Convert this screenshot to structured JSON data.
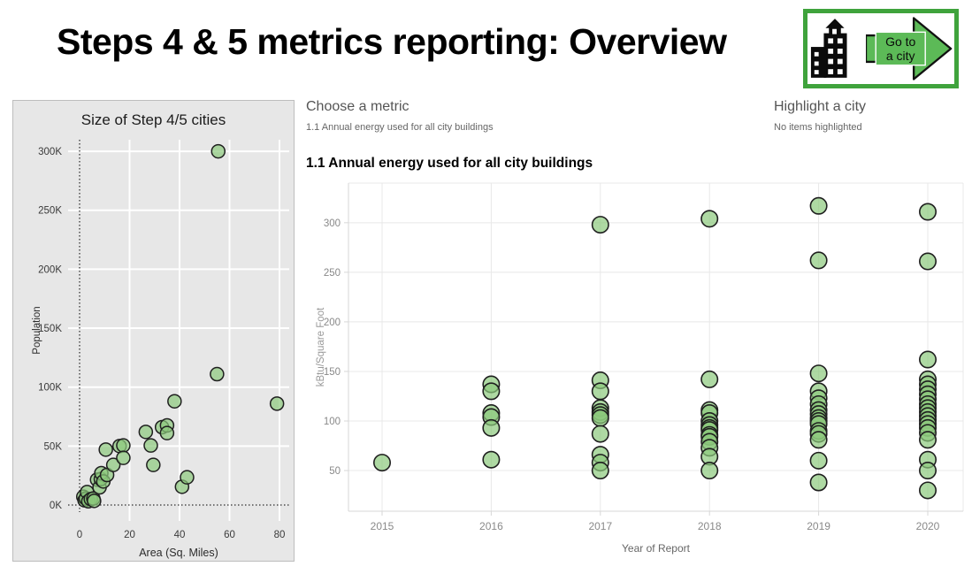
{
  "header": {
    "title": "Steps 4 & 5 metrics reporting: Overview"
  },
  "go_to_city": {
    "label_line1": "Go to",
    "label_line2": "a city",
    "border_color": "#3fa33c",
    "arrow_color": "#5cba57"
  },
  "controls": {
    "choose_metric": {
      "title": "Choose a metric",
      "value": "1.1 Annual energy used for all city buildings"
    },
    "highlight_city": {
      "title": "Highlight a city",
      "status": "No items highlighted"
    }
  },
  "colors": {
    "point_fill": "#8cc97c",
    "point_stroke": "#1f1f1f",
    "left_card_bg": "#e7e7e7",
    "main_grid": "#e8e8e8",
    "main_axis": "#d7d7d7",
    "main_tick_text": "#898989"
  },
  "chart_data": [
    {
      "type": "scatter",
      "title": "Size of Step 4/5 cities",
      "xlabel": "Area  (Sq. Miles)",
      "ylabel": "Population",
      "xticks": [
        0,
        20,
        40,
        60,
        80
      ],
      "yticks": [
        0,
        50,
        100,
        150,
        200,
        250,
        300
      ],
      "ytick_suffix": "K",
      "xlim": [
        -4.6,
        83.9
      ],
      "ylim": [
        -13.5,
        309.8
      ],
      "grid": "on",
      "zero_lines": "dotted",
      "points_note": "x = area in sq. miles, y = population in thousands",
      "points": [
        [
          1.5,
          7
        ],
        [
          2,
          4
        ],
        [
          2.5,
          5.5
        ],
        [
          3,
          11
        ],
        [
          3.5,
          3.2
        ],
        [
          4.5,
          5
        ],
        [
          5.5,
          5.5
        ],
        [
          5.8,
          3.5
        ],
        [
          7,
          21.5
        ],
        [
          8,
          15
        ],
        [
          8.5,
          22
        ],
        [
          8.7,
          27
        ],
        [
          9.5,
          20
        ],
        [
          11,
          25.5
        ],
        [
          10.5,
          47
        ],
        [
          13.5,
          34
        ],
        [
          16,
          50
        ],
        [
          17.5,
          50.5
        ],
        [
          17.5,
          40
        ],
        [
          26.5,
          62
        ],
        [
          28.5,
          50.5
        ],
        [
          29.5,
          34
        ],
        [
          33,
          66
        ],
        [
          35,
          67.5
        ],
        [
          35,
          61
        ],
        [
          38,
          88
        ],
        [
          41,
          15.5
        ],
        [
          43,
          23.5
        ],
        [
          55,
          111
        ],
        [
          55.5,
          300
        ],
        [
          79,
          86
        ]
      ]
    },
    {
      "type": "scatter",
      "title": "1.1 Annual energy used for all city buildings",
      "xlabel": "Year of Report",
      "ylabel": "kBtu/Square Foot",
      "categories": [
        "2015",
        "2016",
        "2017",
        "2018",
        "2019",
        "2020"
      ],
      "yticks": [
        50,
        100,
        150,
        200,
        250,
        300
      ],
      "ylim": [
        9,
        340
      ],
      "grid": "on",
      "points_note": "pairs of [year, kBtu per square foot]",
      "points": [
        [
          2015,
          58
        ],
        [
          2016,
          137
        ],
        [
          2016,
          130
        ],
        [
          2016,
          108
        ],
        [
          2016,
          104
        ],
        [
          2016,
          93
        ],
        [
          2016,
          61
        ],
        [
          2017,
          298
        ],
        [
          2017,
          141
        ],
        [
          2017,
          130
        ],
        [
          2017,
          113
        ],
        [
          2017,
          109
        ],
        [
          2017,
          106
        ],
        [
          2017,
          103
        ],
        [
          2017,
          87
        ],
        [
          2017,
          66
        ],
        [
          2017,
          58
        ],
        [
          2017,
          50
        ],
        [
          2018,
          304
        ],
        [
          2018,
          142
        ],
        [
          2018,
          111
        ],
        [
          2018,
          108
        ],
        [
          2018,
          100
        ],
        [
          2018,
          96
        ],
        [
          2018,
          93
        ],
        [
          2018,
          91
        ],
        [
          2018,
          86
        ],
        [
          2018,
          84
        ],
        [
          2018,
          79
        ],
        [
          2018,
          73
        ],
        [
          2018,
          64
        ],
        [
          2018,
          50
        ],
        [
          2019,
          317
        ],
        [
          2019,
          262
        ],
        [
          2019,
          148
        ],
        [
          2019,
          130
        ],
        [
          2019,
          123
        ],
        [
          2019,
          117
        ],
        [
          2019,
          111
        ],
        [
          2019,
          107
        ],
        [
          2019,
          103
        ],
        [
          2019,
          100
        ],
        [
          2019,
          97
        ],
        [
          2019,
          90
        ],
        [
          2019,
          87
        ],
        [
          2019,
          81
        ],
        [
          2019,
          60
        ],
        [
          2019,
          38
        ],
        [
          2020,
          311
        ],
        [
          2020,
          261
        ],
        [
          2020,
          162
        ],
        [
          2020,
          142
        ],
        [
          2020,
          137
        ],
        [
          2020,
          132
        ],
        [
          2020,
          127
        ],
        [
          2020,
          122
        ],
        [
          2020,
          117
        ],
        [
          2020,
          113
        ],
        [
          2020,
          109
        ],
        [
          2020,
          105
        ],
        [
          2020,
          101
        ],
        [
          2020,
          97
        ],
        [
          2020,
          93
        ],
        [
          2020,
          88
        ],
        [
          2020,
          81
        ],
        [
          2020,
          61
        ],
        [
          2020,
          50
        ],
        [
          2020,
          30
        ]
      ]
    }
  ]
}
